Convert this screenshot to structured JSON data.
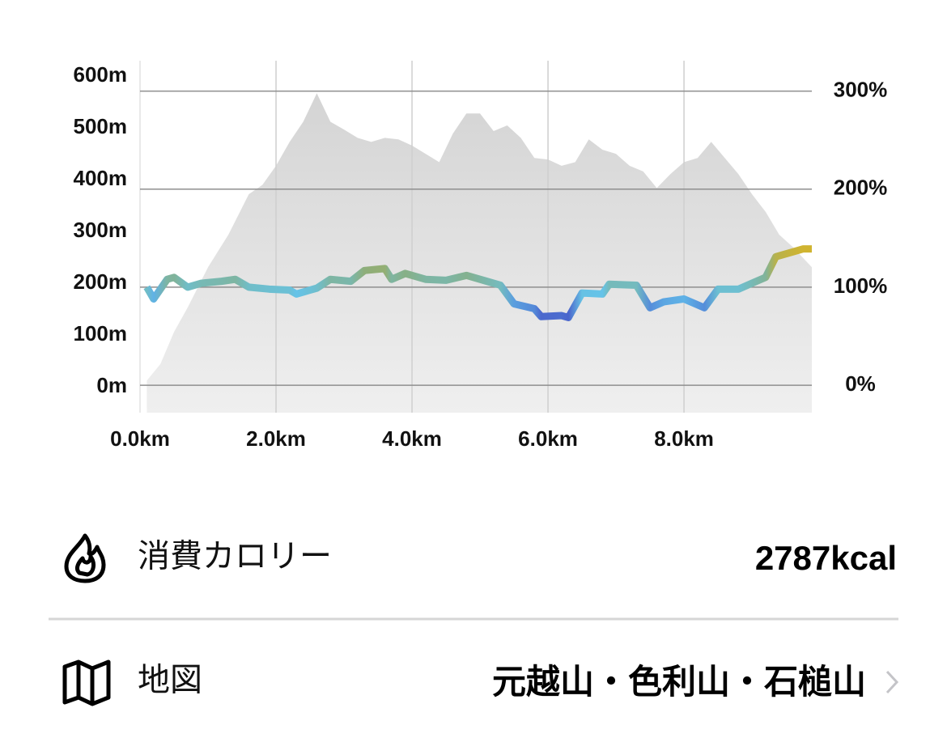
{
  "chart_data": {
    "type": "area-line",
    "xlim": [
      0,
      9.88
    ],
    "xticks": [
      {
        "value": 0,
        "label": "0.0km"
      },
      {
        "value": 2,
        "label": "2.0km"
      },
      {
        "value": 4,
        "label": "4.0km"
      },
      {
        "value": 6,
        "label": "6.0km"
      },
      {
        "value": 8,
        "label": "8.0km"
      }
    ],
    "ylim": [
      -50,
      630
    ],
    "yticks": [
      {
        "value": 0,
        "label": "0m"
      },
      {
        "value": 100,
        "label": "100m"
      },
      {
        "value": 200,
        "label": "200m"
      },
      {
        "value": 300,
        "label": "300m"
      },
      {
        "value": 400,
        "label": "400m"
      },
      {
        "value": 500,
        "label": "500m"
      },
      {
        "value": 600,
        "label": "600m"
      }
    ],
    "y2lim": [
      -28,
      331
    ],
    "y2ticks": [
      {
        "value": 0,
        "label": "0%"
      },
      {
        "value": 100,
        "label": "100%"
      },
      {
        "value": 200,
        "label": "200%"
      },
      {
        "value": 300,
        "label": "300%"
      }
    ],
    "grid": true,
    "series": [
      {
        "kind": "area",
        "color": [
          "#d4d4d4",
          "#efefef"
        ],
        "x": [
          0.1,
          0.3,
          0.5,
          0.7,
          1.0,
          1.3,
          1.6,
          1.8,
          2.0,
          2.2,
          2.4,
          2.6,
          2.8,
          3.0,
          3.2,
          3.4,
          3.6,
          3.8,
          4.0,
          4.2,
          4.4,
          4.6,
          4.8,
          5.0,
          5.2,
          5.4,
          5.6,
          5.8,
          6.0,
          6.2,
          6.4,
          6.6,
          6.8,
          7.0,
          7.2,
          7.4,
          7.6,
          7.8,
          8.0,
          8.2,
          8.4,
          8.6,
          8.8,
          9.0,
          9.2,
          9.4,
          9.6,
          9.88
        ],
        "values": [
          12,
          44,
          106,
          153,
          231,
          294,
          372,
          390,
          427,
          473,
          512,
          567,
          512,
          497,
          481,
          473,
          481,
          478,
          466,
          450,
          434,
          489,
          528,
          528,
          494,
          505,
          481,
          442,
          439,
          427,
          434,
          478,
          458,
          450,
          427,
          416,
          384,
          411,
          434,
          442,
          473,
          442,
          411,
          372,
          338,
          294,
          270,
          231
        ]
      },
      {
        "kind": "line",
        "axis": "y2",
        "color": [
          "#4a64cc",
          "#64c4ec",
          "#8aae7e",
          "#d0b430"
        ],
        "x": [
          0.1,
          0.2,
          0.4,
          0.5,
          0.7,
          0.9,
          1.2,
          1.4,
          1.6,
          1.9,
          2.2,
          2.3,
          2.6,
          2.8,
          3.1,
          3.3,
          3.6,
          3.7,
          3.9,
          4.2,
          4.5,
          4.8,
          5.1,
          5.3,
          5.5,
          5.8,
          5.9,
          6.2,
          6.3,
          6.5,
          6.8,
          6.9,
          7.3,
          7.5,
          7.7,
          8.0,
          8.3,
          8.5,
          8.8,
          9.0,
          9.2,
          9.35,
          9.6,
          9.75,
          9.88
        ],
        "values": [
          100,
          88,
          108,
          110,
          100,
          104,
          106,
          108,
          100,
          98,
          97,
          93,
          99,
          108,
          106,
          117,
          119,
          108,
          114,
          108,
          107,
          112,
          106,
          102,
          83,
          78,
          70,
          71,
          69,
          94,
          93,
          103,
          102,
          79,
          85,
          88,
          79,
          98,
          98,
          104,
          110,
          131,
          136,
          139,
          139
        ]
      }
    ]
  },
  "rows": [
    {
      "label": "消費カロリー",
      "value": "2787kcal"
    },
    {
      "label": "地図",
      "value": "元越山・色利山・石槌山"
    }
  ]
}
